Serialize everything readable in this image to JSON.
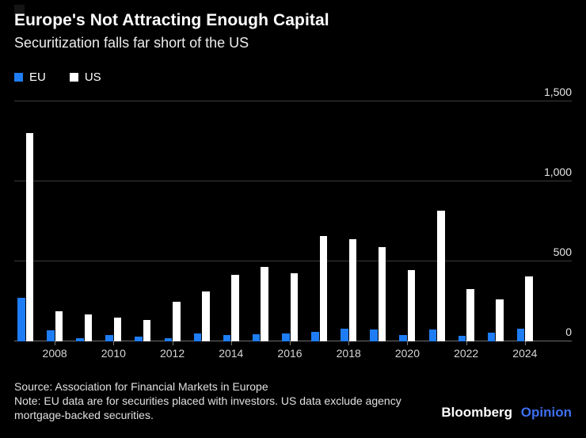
{
  "header": {
    "title": "Europe's Not Attracting Enough Capital",
    "subtitle": "Securitization falls far short of the US"
  },
  "chart_data": {
    "type": "bar",
    "categories": [
      "2007",
      "2008",
      "2009",
      "2010",
      "2011",
      "2012",
      "2013",
      "2014",
      "2015",
      "2016",
      "2017",
      "2018",
      "2019",
      "2020",
      "2021",
      "2022",
      "2023",
      "2024"
    ],
    "series": [
      {
        "name": "EU",
        "color": "#1e7df4",
        "values": [
          270,
          70,
          20,
          40,
          30,
          20,
          50,
          40,
          45,
          50,
          60,
          80,
          75,
          40,
          75,
          35,
          55,
          80
        ]
      },
      {
        "name": "US",
        "color": "#ffffff",
        "values": [
          1300,
          190,
          170,
          150,
          135,
          250,
          310,
          415,
          465,
          425,
          660,
          640,
          590,
          445,
          815,
          325,
          260,
          405
        ]
      }
    ],
    "title": "Europe's Not Attracting Enough Capital",
    "subtitle": "Securitization falls far short of the US",
    "xlabel": "",
    "ylabel": "",
    "ylim": [
      0,
      1500
    ],
    "yticks": [
      0,
      500,
      1000,
      1500
    ],
    "ytick_labels": [
      "0",
      "500",
      "1,000",
      "1,500"
    ],
    "xtick_labels": [
      "2008",
      "2010",
      "2012",
      "2014",
      "2016",
      "2018",
      "2020",
      "2022",
      "2024"
    ],
    "legend_position": "top-left",
    "grid": "horizontal",
    "y_axis_side": "right"
  },
  "footer": {
    "source": "Source: Association for Financial Markets in Europe",
    "note": "Note: EU data are for securities placed with investors. US data exclude agency mortgage-backed securities.",
    "brand": "Bloomberg",
    "brand_suffix": "Opinion"
  },
  "colors": {
    "background": "#000000",
    "eu_blue": "#1e7df4",
    "us_white": "#ffffff",
    "opinion_blue": "#3d6ff2",
    "gridline": "#3c3c3c"
  }
}
